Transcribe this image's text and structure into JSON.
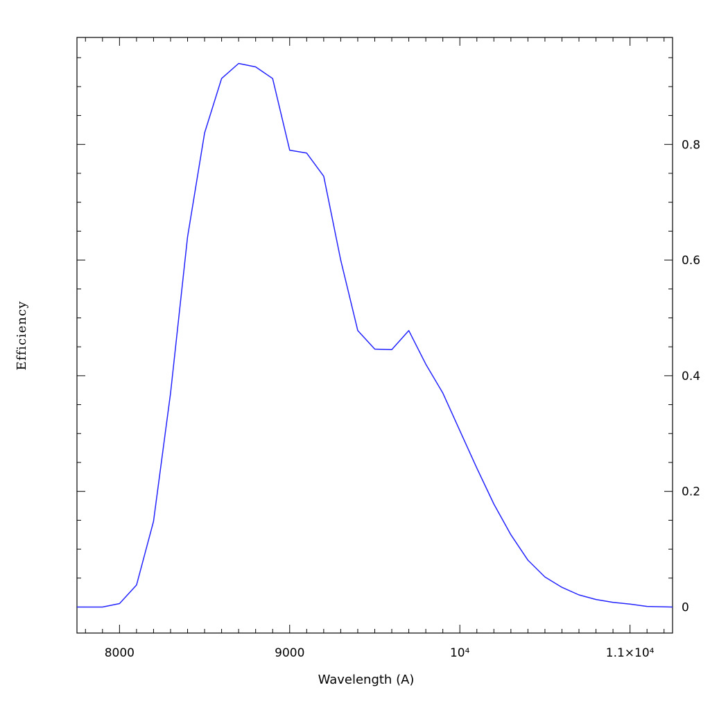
{
  "chart_data": {
    "type": "line",
    "xlabel": "Wavelength (A)",
    "ylabel": "Efficiency",
    "xlim": [
      7750,
      11250
    ],
    "ylim": [
      -0.045,
      0.985
    ],
    "grid": false,
    "x_ticks": [
      {
        "value": 8000,
        "label": "8000"
      },
      {
        "value": 9000,
        "label": "9000"
      },
      {
        "value": 10000,
        "label": "10⁴"
      },
      {
        "value": 11000,
        "label": "1.1×10⁴"
      }
    ],
    "y_ticks": [
      {
        "value": 0,
        "label": "0"
      },
      {
        "value": 0.2,
        "label": "0.2"
      },
      {
        "value": 0.4,
        "label": "0.4"
      },
      {
        "value": 0.6,
        "label": "0.6"
      },
      {
        "value": 0.8,
        "label": "0.8"
      }
    ],
    "series": [
      {
        "color": "#2222ff",
        "x": [
          7750,
          7900,
          8000,
          8100,
          8200,
          8300,
          8400,
          8500,
          8600,
          8700,
          8800,
          8900,
          9000,
          9100,
          9200,
          9300,
          9400,
          9500,
          9600,
          9700,
          9800,
          9900,
          10000,
          10100,
          10200,
          10300,
          10400,
          10500,
          10600,
          10700,
          10800,
          10900,
          11000,
          11100,
          11250
        ],
        "y": [
          0.0,
          0.0,
          0.006,
          0.038,
          0.148,
          0.37,
          0.64,
          0.82,
          0.914,
          0.94,
          0.934,
          0.914,
          0.79,
          0.785,
          0.745,
          0.6,
          0.478,
          0.446,
          0.445,
          0.478,
          0.42,
          0.37,
          0.305,
          0.24,
          0.178,
          0.125,
          0.081,
          0.052,
          0.034,
          0.021,
          0.013,
          0.008,
          0.005,
          0.001,
          0.0
        ]
      }
    ]
  }
}
